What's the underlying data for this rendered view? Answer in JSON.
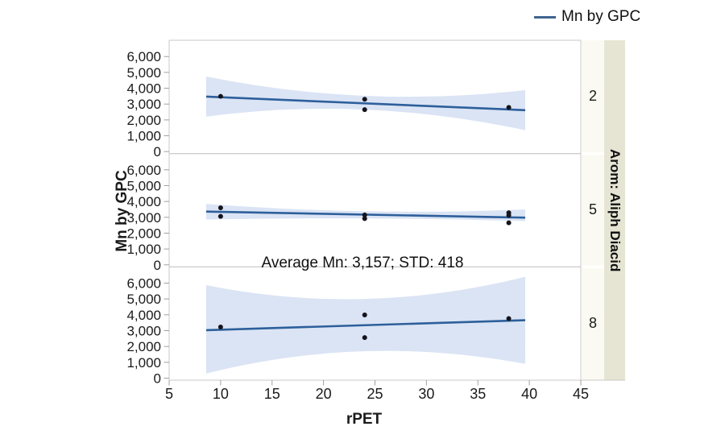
{
  "legend": {
    "label": "Mn by GPC"
  },
  "colors": {
    "fit_line": "#2d5f9b",
    "band": "#dbe4f4",
    "point": "#14141c",
    "panel_border": "#c9c9c9",
    "tick": "#a0a0a0",
    "strip_inner_bg": "#fbfaf2",
    "strip_outer_bg": "#e6e5d4",
    "text": "#1a1a1a"
  },
  "chart_data": {
    "type": "scatter",
    "title": "",
    "xlabel": "rPET",
    "ylabel": "Mn by GPC",
    "annotation": "Average Mn: 3,157; STD: 418",
    "legend_entry": "Mn by GPC",
    "facet_title": "Arom: Aliph Diacid",
    "facet_variable_values": [
      "2",
      "5",
      "8"
    ],
    "xlim": [
      5,
      45
    ],
    "ylim_per_panel": [
      0,
      7000
    ],
    "x_ticks": [
      5,
      10,
      15,
      20,
      25,
      30,
      35,
      40,
      45
    ],
    "y_tick_values": [
      0,
      1000,
      2000,
      3000,
      4000,
      5000,
      6000
    ],
    "y_tick_labels": [
      "0",
      "1,000",
      "2,000",
      "3,000",
      "4,000",
      "5,000",
      "6,000"
    ],
    "grid": "off",
    "legend_position": "top-right",
    "panels": [
      {
        "facet_label": "2",
        "points": [
          [
            10,
            3490
          ],
          [
            24,
            3300
          ],
          [
            24,
            2650
          ],
          [
            38,
            2790
          ]
        ],
        "fit_line": {
          "x": [
            8.6,
            39.6
          ],
          "y": [
            3470,
            2615
          ]
        },
        "conf_band": {
          "x": [
            8.6,
            24,
            39.6
          ],
          "top": [
            4740,
            3520,
            3880
          ],
          "bottom": [
            2210,
            2650,
            1350
          ]
        }
      },
      {
        "facet_label": "5",
        "points": [
          [
            10,
            3600
          ],
          [
            10,
            3060
          ],
          [
            24,
            3150
          ],
          [
            24,
            2920
          ],
          [
            38,
            3290
          ],
          [
            38,
            3120
          ],
          [
            38,
            2650
          ]
        ],
        "fit_line": {
          "x": [
            8.6,
            39.6
          ],
          "y": [
            3360,
            2980
          ]
        },
        "conf_band": {
          "x": [
            8.6,
            24,
            39.6
          ],
          "top": [
            3850,
            3380,
            3500
          ],
          "bottom": [
            2860,
            2930,
            2760
          ]
        }
      },
      {
        "facet_label": "8",
        "points": [
          [
            10,
            3230
          ],
          [
            24,
            3990
          ],
          [
            24,
            2560
          ],
          [
            38,
            3760
          ]
        ],
        "fit_line": {
          "x": [
            8.6,
            39.6
          ],
          "y": [
            3030,
            3660
          ]
        },
        "conf_band": {
          "x": [
            8.6,
            24,
            39.6
          ],
          "top": [
            5870,
            5000,
            6400
          ],
          "bottom": [
            290,
            1700,
            900
          ]
        }
      }
    ]
  }
}
